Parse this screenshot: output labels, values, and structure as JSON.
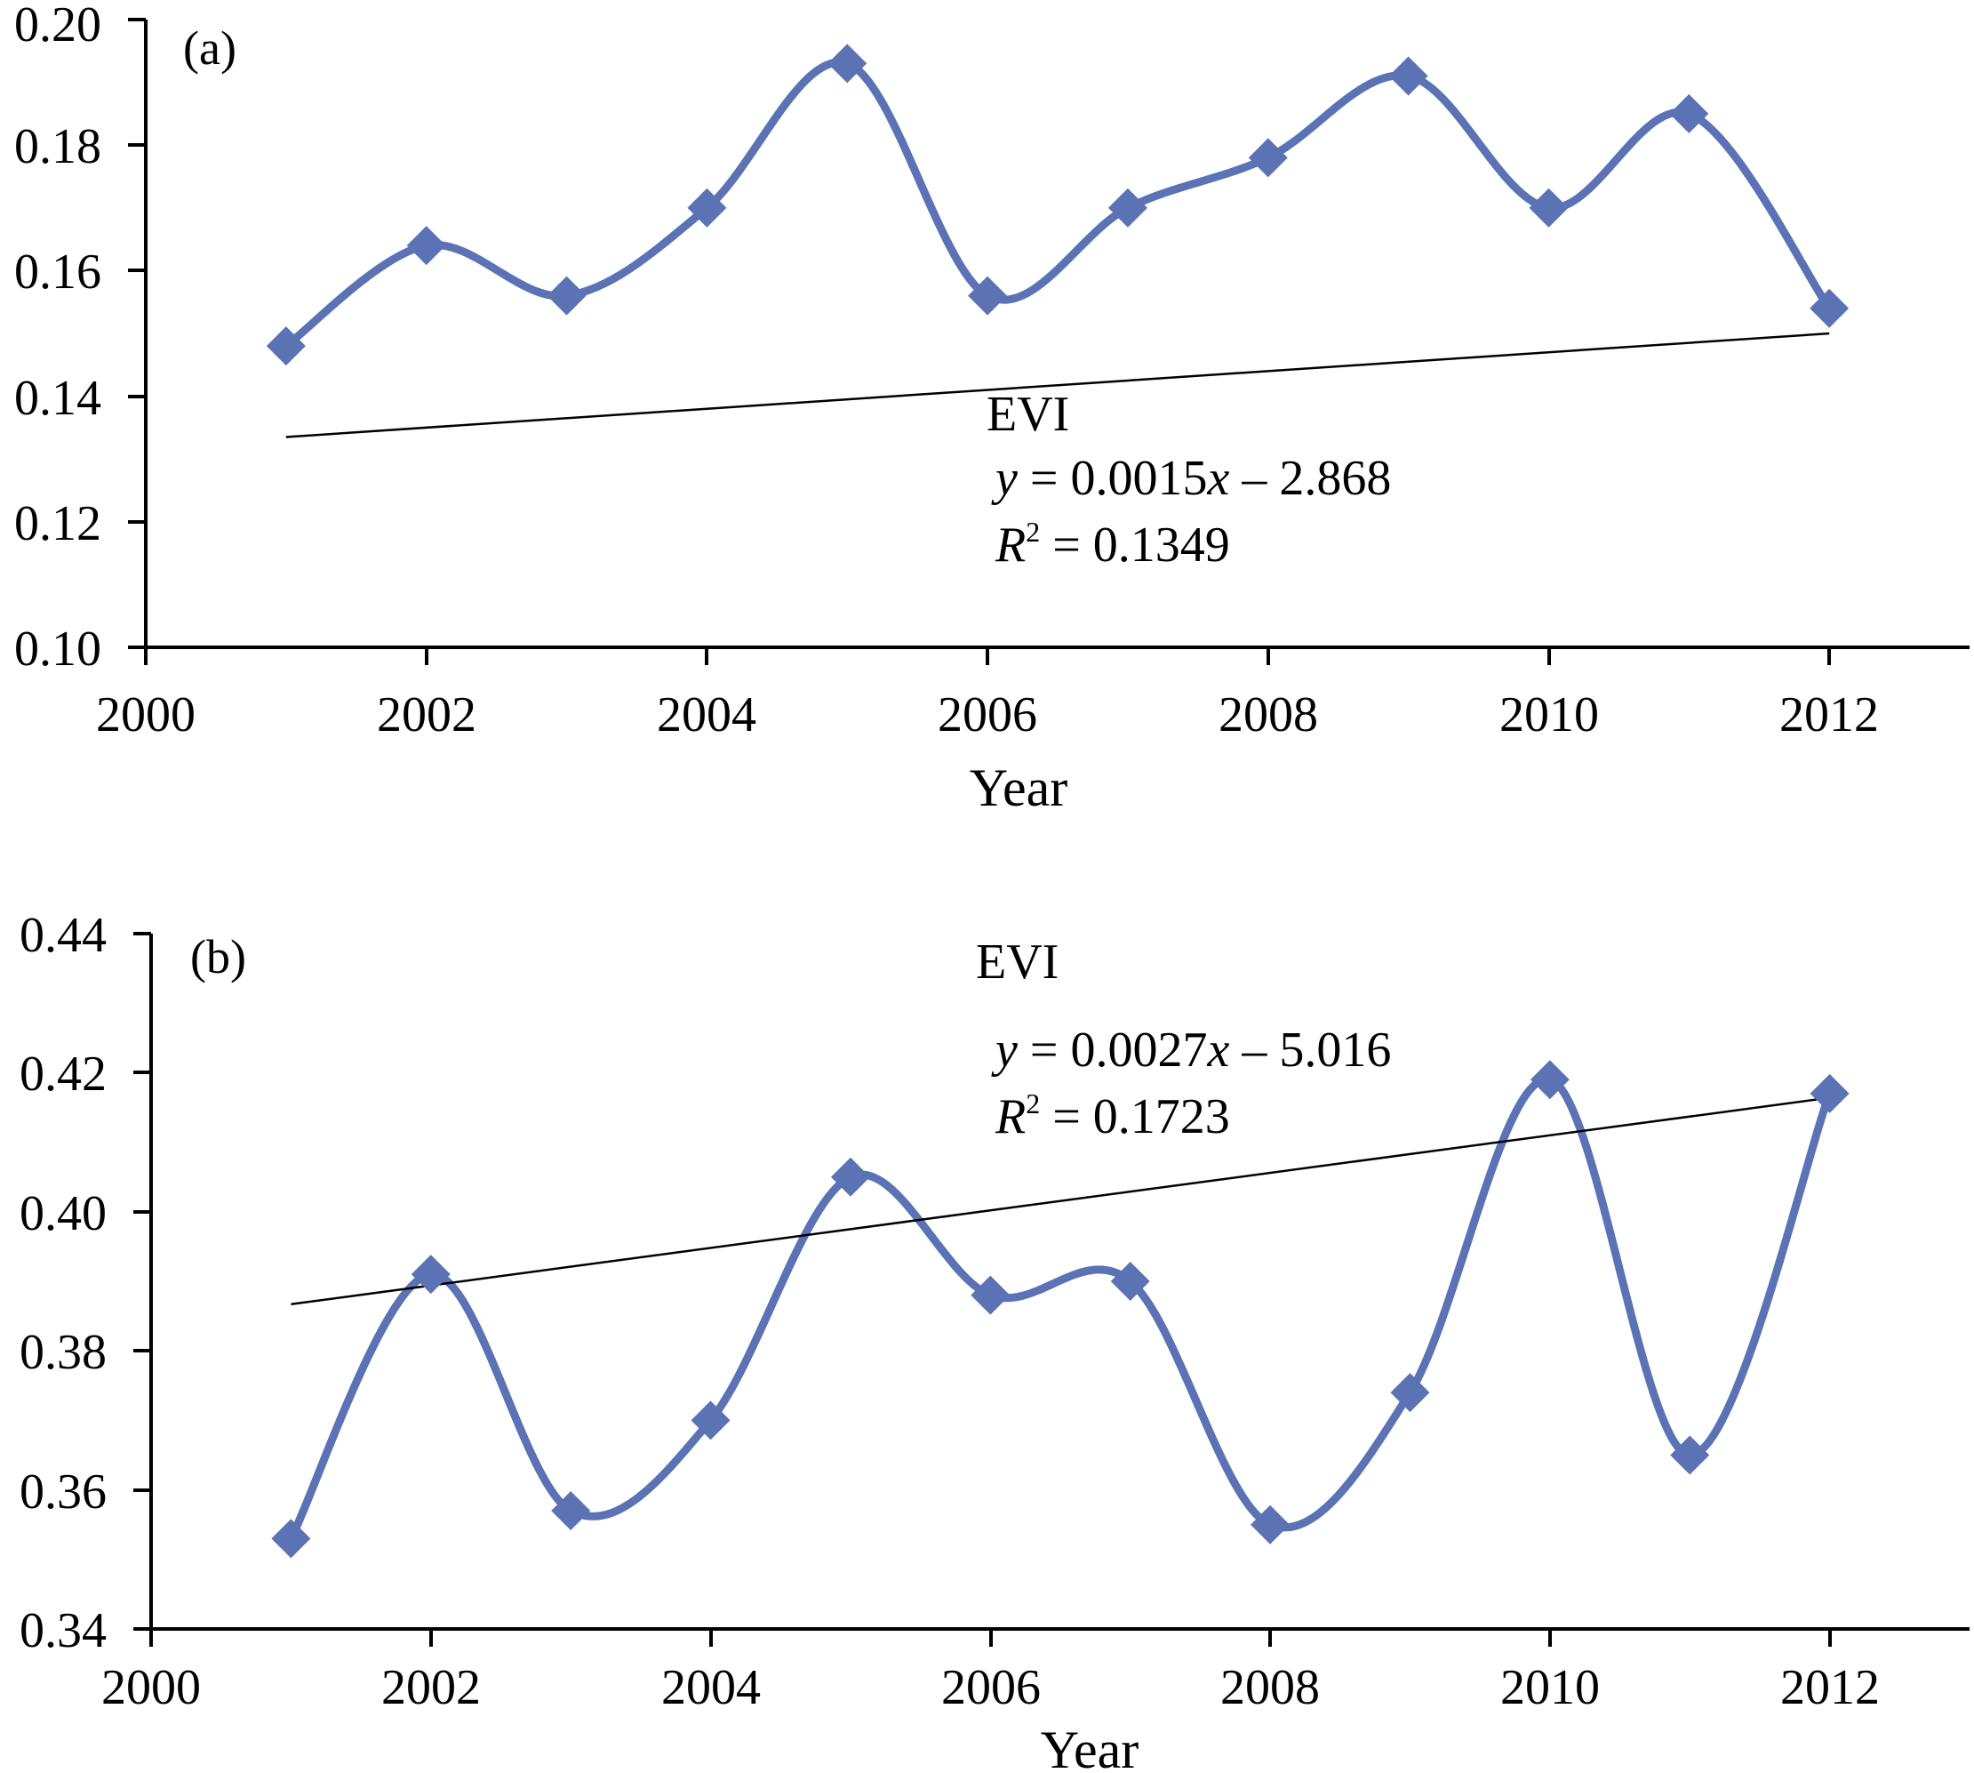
{
  "chart_data": [
    {
      "type": "line",
      "panel_label": "(a)",
      "xlabel": "Year",
      "ylabel": "",
      "xlim": [
        2000,
        2013
      ],
      "ylim": [
        0.1,
        0.2
      ],
      "x_ticks": [
        "2000",
        "2002",
        "2004",
        "2006",
        "2008",
        "2010",
        "2012"
      ],
      "y_ticks": [
        "0.10",
        "0.12",
        "0.14",
        "0.16",
        "0.18",
        "0.20"
      ],
      "grid": false,
      "smooth": true,
      "series_color": "#5B73B5",
      "trend_color": "#000000",
      "series": [
        {
          "name": "EVI",
          "x": [
            2001,
            2002,
            2003,
            2004,
            2005,
            2006,
            2007,
            2008,
            2009,
            2010,
            2011,
            2012
          ],
          "values": [
            0.148,
            0.164,
            0.156,
            0.17,
            0.193,
            0.156,
            0.17,
            0.178,
            0.191,
            0.17,
            0.185,
            0.154
          ]
        }
      ],
      "trendline": {
        "slope": 0.0015,
        "intercept": -2.868,
        "x_range": [
          2001,
          2012
        ]
      },
      "annotation": {
        "name": "EVI",
        "eq_y": "y",
        "eq_rest": " = 0.0015",
        "eq_x": "x",
        "eq_tail": " – 2.868",
        "r2_r": "R",
        "r2_sup": "2",
        "r2_rest": " = 0.1349"
      }
    },
    {
      "type": "line",
      "panel_label": "(b)",
      "xlabel": "Year",
      "ylabel": "",
      "xlim": [
        2000,
        2013
      ],
      "ylim": [
        0.34,
        0.44
      ],
      "x_ticks": [
        "2000",
        "2002",
        "2004",
        "2006",
        "2008",
        "2010",
        "2012"
      ],
      "y_ticks": [
        "0.34",
        "0.36",
        "0.38",
        "0.40",
        "0.42",
        "0.44"
      ],
      "grid": false,
      "smooth": true,
      "series_color": "#5B73B5",
      "trend_color": "#000000",
      "series": [
        {
          "name": "EVI",
          "x": [
            2001,
            2002,
            2003,
            2004,
            2005,
            2006,
            2007,
            2008,
            2009,
            2010,
            2011,
            2012
          ],
          "values": [
            0.353,
            0.391,
            0.357,
            0.37,
            0.405,
            0.388,
            0.39,
            0.355,
            0.374,
            0.419,
            0.365,
            0.417
          ]
        }
      ],
      "trendline": {
        "slope": 0.0027,
        "intercept": -5.016,
        "x_range": [
          2001,
          2012
        ]
      },
      "annotation": {
        "name": "EVI",
        "eq_y": "y",
        "eq_rest": " = 0.0027",
        "eq_x": "x",
        "eq_tail": " –  5.016",
        "r2_r": "R",
        "r2_sup": "2",
        "r2_rest": " = 0.1723"
      }
    }
  ]
}
